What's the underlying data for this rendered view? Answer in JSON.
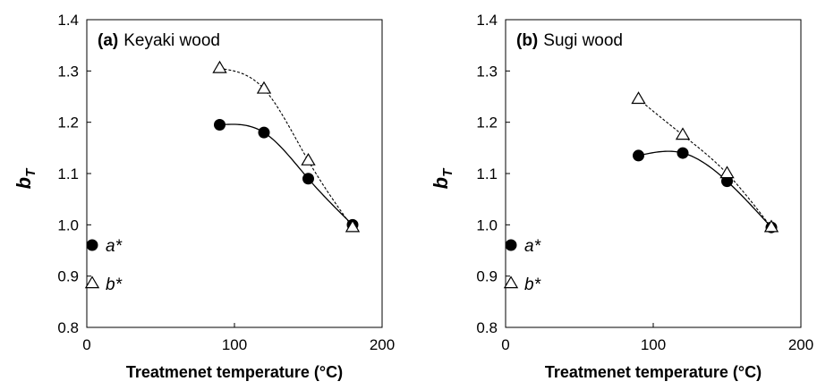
{
  "chart_data": [
    {
      "type": "scatter",
      "panel_tag": "(a)",
      "title": "Keyaki wood",
      "xlabel": "Treatmenet temperature (°C)",
      "ylabel_main": "b",
      "ylabel_sub": "T",
      "xlim": [
        0,
        200
      ],
      "ylim": [
        0.8,
        1.4
      ],
      "xticks": [
        "0",
        "100",
        "200"
      ],
      "yticks": [
        "0.8",
        "0.9",
        "1.0",
        "1.1",
        "1.2",
        "1.3",
        "1.4"
      ],
      "grid": false,
      "legend_placement": "lower-left",
      "series": [
        {
          "name": "a*",
          "marker": "filled-circle",
          "line": "solid",
          "x": [
            90,
            120,
            150,
            180
          ],
          "y": [
            1.195,
            1.18,
            1.09,
            1.0
          ]
        },
        {
          "name": "b*",
          "marker": "open-triangle",
          "line": "dashed",
          "x": [
            90,
            120,
            150,
            180
          ],
          "y": [
            1.305,
            1.265,
            1.125,
            0.995
          ]
        }
      ]
    },
    {
      "type": "scatter",
      "panel_tag": "(b)",
      "title": "Sugi wood",
      "xlabel": "Treatmenet temperature (°C)",
      "ylabel_main": "b",
      "ylabel_sub": "T",
      "xlim": [
        0,
        200
      ],
      "ylim": [
        0.8,
        1.4
      ],
      "xticks": [
        "0",
        "100",
        "200"
      ],
      "yticks": [
        "0.8",
        "0.9",
        "1.0",
        "1.1",
        "1.2",
        "1.3",
        "1.4"
      ],
      "grid": false,
      "legend_placement": "lower-left",
      "series": [
        {
          "name": "a*",
          "marker": "filled-circle",
          "line": "solid",
          "x": [
            90,
            120,
            150,
            180
          ],
          "y": [
            1.135,
            1.14,
            1.085,
            0.995
          ]
        },
        {
          "name": "b*",
          "marker": "open-triangle",
          "line": "dashed",
          "x": [
            90,
            120,
            150,
            180
          ],
          "y": [
            1.245,
            1.175,
            1.1,
            0.995
          ]
        }
      ]
    }
  ]
}
